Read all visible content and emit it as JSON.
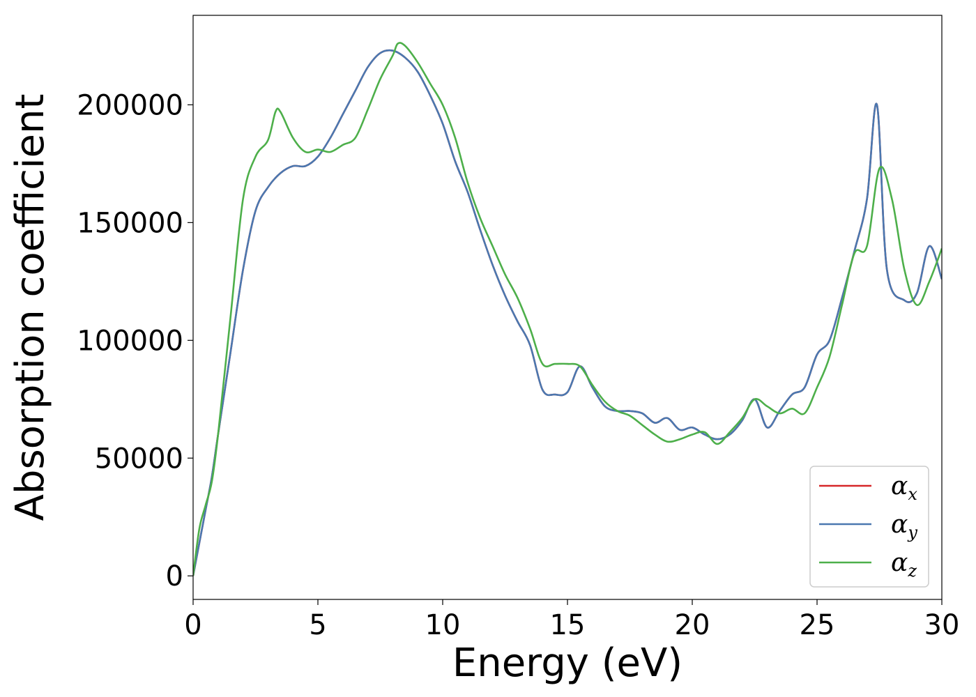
{
  "chart_data": {
    "type": "line",
    "xlabel": "Energy (eV)",
    "ylabel": "Absorption coefficient",
    "xlim": [
      0,
      30
    ],
    "ylim": [
      -10000,
      238000
    ],
    "xticks": [
      0,
      5,
      10,
      15,
      20,
      25,
      30
    ],
    "yticks": [
      0,
      50000,
      100000,
      150000,
      200000
    ],
    "grid": false,
    "legend": "bottom-right",
    "series": [
      {
        "name": "α",
        "subscript": "x",
        "color": "#d62728",
        "x": [
          0,
          0.25,
          0.5,
          0.75,
          1,
          1.5,
          2,
          2.5,
          3,
          3.5,
          4,
          4.5,
          5,
          5.5,
          6,
          6.5,
          7,
          7.5,
          8,
          8.5,
          9,
          9.5,
          10,
          10.5,
          11,
          11.5,
          12,
          12.5,
          13,
          13.5,
          14,
          14.5,
          15,
          15.5,
          16,
          16.5,
          17,
          17.5,
          18,
          18.5,
          19,
          19.5,
          20,
          20.5,
          21,
          21.5,
          22,
          22.5,
          23,
          23.5,
          24,
          24.5,
          25,
          25.5,
          26,
          26.5,
          27,
          27.4,
          27.8,
          28.5,
          29,
          29.5,
          30
        ],
        "y": [
          0,
          14000,
          28000,
          42000,
          60000,
          95000,
          130000,
          155000,
          165000,
          171000,
          174000,
          174000,
          178000,
          186000,
          196000,
          206000,
          216000,
          222000,
          223000,
          220000,
          214000,
          204000,
          192000,
          176000,
          163000,
          147000,
          132000,
          119000,
          108000,
          98000,
          79000,
          77000,
          78000,
          89000,
          80000,
          72000,
          70000,
          70000,
          69000,
          65000,
          67000,
          62000,
          63000,
          60000,
          58000,
          60000,
          66000,
          75000,
          63000,
          70000,
          77000,
          80000,
          94000,
          100000,
          118000,
          138000,
          160000,
          200000,
          130000,
          117000,
          120000,
          140000,
          126000
        ]
      },
      {
        "name": "α",
        "subscript": "y",
        "color": "#4a78b0",
        "x": [
          0,
          0.25,
          0.5,
          0.75,
          1,
          1.5,
          2,
          2.5,
          3,
          3.5,
          4,
          4.5,
          5,
          5.5,
          6,
          6.5,
          7,
          7.5,
          8,
          8.5,
          9,
          9.5,
          10,
          10.5,
          11,
          11.5,
          12,
          12.5,
          13,
          13.5,
          14,
          14.5,
          15,
          15.5,
          16,
          16.5,
          17,
          17.5,
          18,
          18.5,
          19,
          19.5,
          20,
          20.5,
          21,
          21.5,
          22,
          22.5,
          23,
          23.5,
          24,
          24.5,
          25,
          25.5,
          26,
          26.5,
          27,
          27.4,
          27.8,
          28.5,
          29,
          29.5,
          30
        ],
        "y": [
          0,
          14000,
          28000,
          42000,
          60000,
          95000,
          130000,
          155000,
          165000,
          171000,
          174000,
          174000,
          178000,
          186000,
          196000,
          206000,
          216000,
          222000,
          223000,
          220000,
          214000,
          204000,
          192000,
          176000,
          163000,
          147000,
          132000,
          119000,
          108000,
          98000,
          79000,
          77000,
          78000,
          89000,
          80000,
          72000,
          70000,
          70000,
          69000,
          65000,
          67000,
          62000,
          63000,
          60000,
          58000,
          60000,
          66000,
          75000,
          63000,
          70000,
          77000,
          80000,
          94000,
          100000,
          118000,
          138000,
          160000,
          200000,
          130000,
          117000,
          120000,
          140000,
          126000
        ]
      },
      {
        "name": "α",
        "subscript": "z",
        "color": "#4daf4a",
        "x": [
          0,
          0.25,
          0.5,
          0.75,
          1,
          1.5,
          2,
          2.5,
          3,
          3.3,
          3.5,
          4,
          4.5,
          5,
          5.5,
          6,
          6.5,
          7,
          7.5,
          8,
          8.2,
          8.5,
          9,
          9.5,
          10,
          10.5,
          11,
          11.5,
          12,
          12.5,
          13,
          13.5,
          14,
          14.5,
          15,
          15.5,
          16,
          16.5,
          17,
          17.5,
          18,
          18.5,
          19,
          19.5,
          20,
          20.5,
          21,
          21.5,
          22,
          22.5,
          23,
          23.5,
          24,
          24.5,
          25,
          25.5,
          26,
          26.5,
          27,
          27.5,
          28,
          28.5,
          29,
          29.5,
          30
        ],
        "y": [
          0,
          20000,
          30000,
          40000,
          60000,
          110000,
          160000,
          178000,
          185000,
          197000,
          197000,
          186000,
          180000,
          181000,
          180000,
          183000,
          186000,
          198000,
          211000,
          221000,
          226000,
          225000,
          218000,
          209000,
          200000,
          186000,
          167000,
          152000,
          140000,
          128000,
          118000,
          105000,
          90000,
          90000,
          90000,
          89000,
          81000,
          74000,
          70000,
          68000,
          64000,
          60000,
          57000,
          58000,
          60000,
          61000,
          56000,
          61000,
          67000,
          75000,
          72000,
          69000,
          71000,
          69000,
          80000,
          93000,
          115000,
          137000,
          140000,
          173000,
          160000,
          130000,
          115000,
          125000,
          139000
        ]
      }
    ]
  }
}
